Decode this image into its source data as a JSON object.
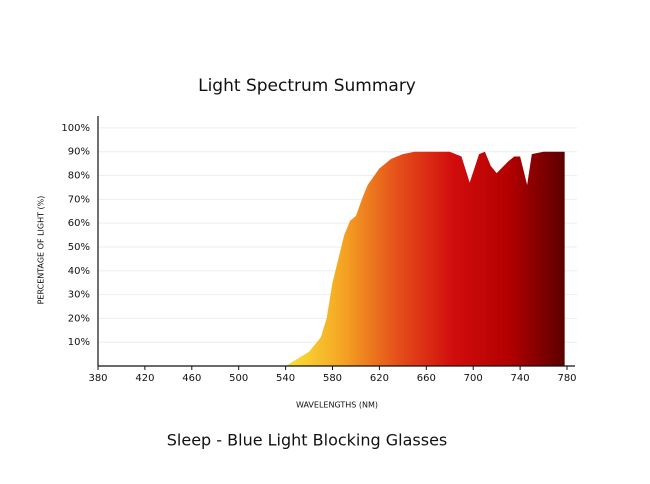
{
  "chart_data": {
    "type": "area",
    "title": "Light Spectrum Summary",
    "x_label": "WAVELENGTHS (NM)",
    "y_label": "PERCENTAGE OF LIGHT (%)",
    "caption": "Sleep - Blue Light Blocking Glasses",
    "x": [
      540,
      550,
      560,
      570,
      575,
      580,
      585,
      590,
      595,
      600,
      605,
      610,
      620,
      630,
      640,
      650,
      660,
      680,
      690,
      697,
      705,
      710,
      715,
      720,
      730,
      735,
      740,
      746,
      750,
      760,
      778
    ],
    "values": [
      0,
      3,
      6,
      12,
      20,
      35,
      45,
      55,
      61,
      63,
      70,
      76,
      83,
      87,
      89,
      90,
      90,
      90,
      88,
      77,
      89,
      90,
      84,
      81,
      86,
      88,
      88,
      76,
      89,
      90,
      90
    ],
    "colors": [
      "#f8e43a",
      "#f5a623",
      "#e5501a",
      "#d10d0d",
      "#b30000",
      "#5c0000"
    ],
    "xlim": [
      380,
      780
    ],
    "ylim": [
      0,
      105
    ],
    "xticks": [
      380,
      420,
      460,
      500,
      540,
      580,
      620,
      660,
      700,
      740,
      780
    ],
    "yticks": [
      {
        "value": 10,
        "label": "10%"
      },
      {
        "value": 20,
        "label": "20%"
      },
      {
        "value": 30,
        "label": "30%"
      },
      {
        "value": 40,
        "label": "40%"
      },
      {
        "value": 50,
        "label": "50%"
      },
      {
        "value": 60,
        "label": "60%"
      },
      {
        "value": 70,
        "label": "70%"
      },
      {
        "value": 80,
        "label": "80%"
      },
      {
        "value": 90,
        "label": "90%"
      },
      {
        "value": 100,
        "label": "100%"
      }
    ],
    "grid": true
  }
}
